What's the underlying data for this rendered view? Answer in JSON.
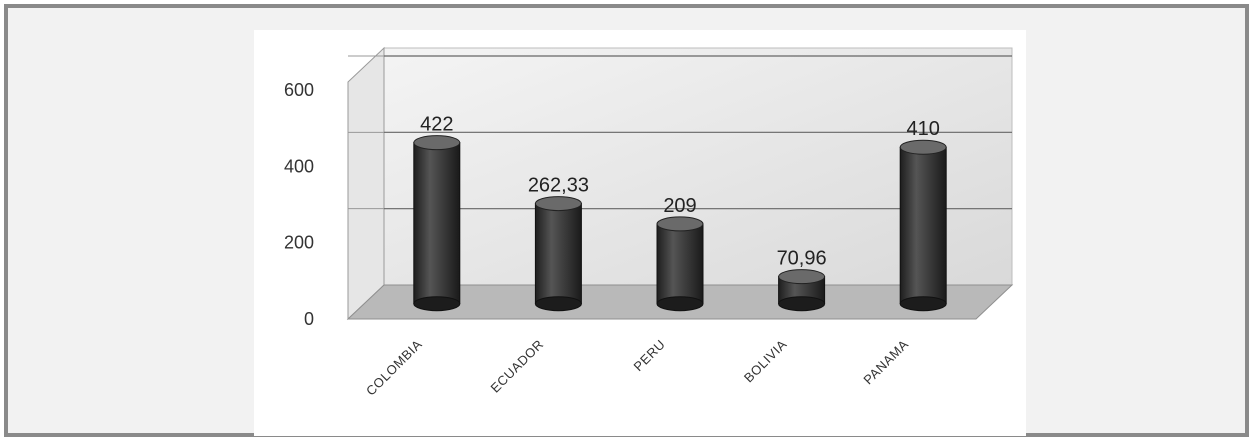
{
  "chart_data": {
    "type": "bar",
    "categories": [
      "COLOMBIA",
      "ECUADOR",
      "PERU",
      "BOLIVIA",
      "PANAMA"
    ],
    "values": [
      422,
      262.33,
      209,
      70.96,
      410
    ],
    "value_labels": [
      "422",
      "262,33",
      "209",
      "70,96",
      "410"
    ],
    "yticks": [
      0,
      200,
      400,
      600
    ],
    "ylim": [
      0,
      600
    ],
    "grid": true,
    "title": "",
    "xlabel": "",
    "ylabel": "",
    "colors": {
      "bar": "#2e2e2e",
      "bar_highlight": "#5a5a5a",
      "wall": "#e6e6e6",
      "floor": "#b9b9b9",
      "grid": "#666666"
    }
  }
}
